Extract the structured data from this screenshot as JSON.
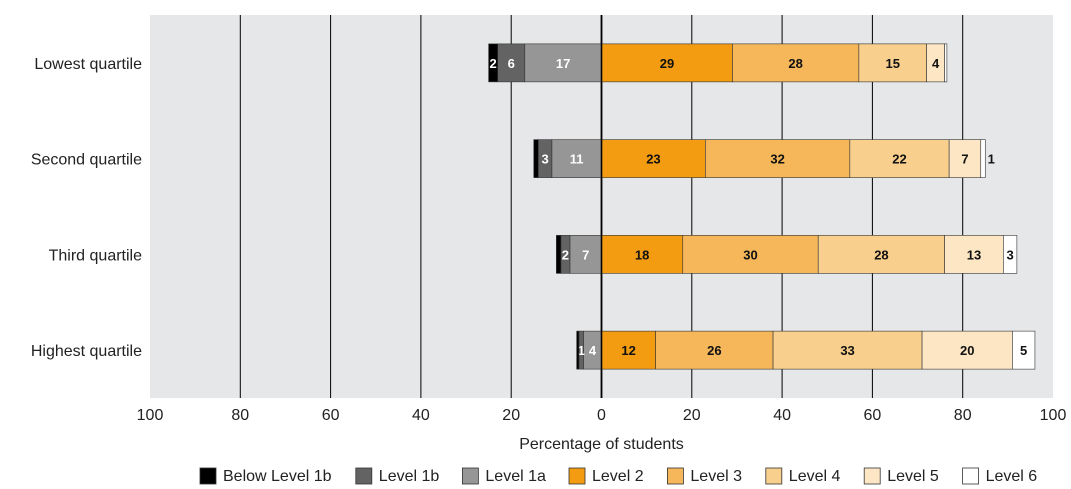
{
  "chart_data": {
    "type": "bar",
    "orientation": "horizontal-diverging",
    "categories": [
      "Lowest quartile",
      "Second quartile",
      "Third quartile",
      "Highest quartile"
    ],
    "series": [
      {
        "name": "Below Level 1b",
        "side": "negative",
        "color": "#000000",
        "values": [
          2,
          1,
          1,
          0.5
        ]
      },
      {
        "name": "Level 1b",
        "side": "negative",
        "color": "#636363",
        "values": [
          6,
          3,
          2,
          1
        ]
      },
      {
        "name": "Level 1a",
        "side": "negative",
        "color": "#969696",
        "values": [
          17,
          11,
          7,
          4
        ]
      },
      {
        "name": "Level 2",
        "side": "positive",
        "color": "#f39c12",
        "values": [
          29,
          23,
          18,
          12
        ]
      },
      {
        "name": "Level 3",
        "side": "positive",
        "color": "#f5b75a",
        "values": [
          28,
          32,
          30,
          26
        ]
      },
      {
        "name": "Level 4",
        "side": "positive",
        "color": "#f8cf8d",
        "values": [
          15,
          22,
          28,
          33
        ]
      },
      {
        "name": "Level 5",
        "side": "positive",
        "color": "#fde6c4",
        "values": [
          4,
          7,
          13,
          20
        ]
      },
      {
        "name": "Level 6",
        "side": "positive",
        "color": "#ffffff",
        "values": [
          0.5,
          1,
          3,
          5
        ]
      }
    ],
    "data_labels": [
      [
        "2",
        "6",
        "17",
        "29",
        "28",
        "15",
        "4",
        ""
      ],
      [
        "",
        "3",
        "11",
        "23",
        "32",
        "22",
        "7",
        "1"
      ],
      [
        "",
        "2",
        "7",
        "18",
        "30",
        "28",
        "13",
        "3"
      ],
      [
        "",
        "1",
        "4",
        "12",
        "26",
        "33",
        "20",
        "5"
      ]
    ],
    "xlim": [
      -100,
      100
    ],
    "x_ticks": [
      -100,
      -80,
      -60,
      -40,
      -20,
      0,
      20,
      40,
      60,
      80,
      100
    ],
    "x_tick_labels": [
      "100",
      "80",
      "60",
      "40",
      "20",
      "0",
      "20",
      "40",
      "60",
      "80",
      "100"
    ],
    "xlabel": "Percentage of students",
    "ylabel": "",
    "grid": true,
    "legend_position": "bottom",
    "plot_background": "#e6e7e8"
  }
}
